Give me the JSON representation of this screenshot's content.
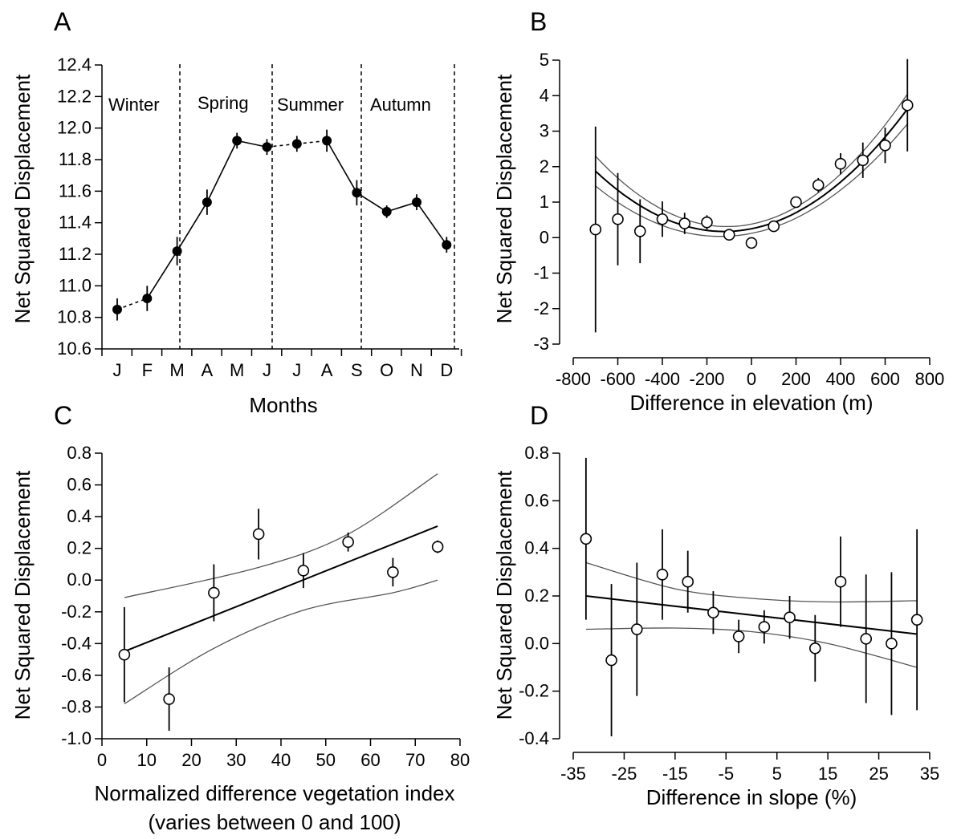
{
  "chart_data": [
    {
      "type": "line",
      "panel": "A",
      "xlabel": "Months",
      "ylabel": "Net Squared Displacement",
      "ylim": [
        10.6,
        12.4
      ],
      "yticks": [
        "10.6",
        "10.8",
        "11.0",
        "11.2",
        "11.4",
        "11.6",
        "11.8",
        "12.0",
        "12.2",
        "12.4"
      ],
      "categories": [
        "J",
        "F",
        "M",
        "A",
        "M",
        "J",
        "J",
        "A",
        "S",
        "O",
        "N",
        "D"
      ],
      "values": [
        10.85,
        10.92,
        11.22,
        11.53,
        11.92,
        11.88,
        11.9,
        11.92,
        11.59,
        11.47,
        11.53,
        11.26
      ],
      "errors": [
        0.07,
        0.08,
        0.09,
        0.08,
        0.05,
        0.05,
        0.05,
        0.07,
        0.08,
        0.04,
        0.05,
        0.05
      ],
      "seasons": [
        "Winter",
        "Spring",
        "Summer",
        "Autumn"
      ],
      "marker": "filled-circle"
    },
    {
      "type": "scatter",
      "panel": "B",
      "xlabel": "Difference in elevation (m)",
      "ylabel": "Net Squared Displacement",
      "xlim": [
        -800,
        800
      ],
      "ylim": [
        -3,
        5
      ],
      "xticks": [
        "-800",
        "-600",
        "-400",
        "-200",
        "0",
        "200",
        "400",
        "600",
        "800"
      ],
      "yticks": [
        "-3",
        "-2",
        "-1",
        "0",
        "1",
        "2",
        "3",
        "4",
        "5"
      ],
      "x": [
        -700,
        -600,
        -500,
        -400,
        -300,
        -200,
        -100,
        0,
        100,
        200,
        300,
        400,
        500,
        600,
        700
      ],
      "y": [
        0.23,
        0.52,
        0.18,
        0.52,
        0.4,
        0.43,
        0.08,
        -0.15,
        0.32,
        1.0,
        1.48,
        2.08,
        2.18,
        2.6,
        3.73
      ],
      "errors": [
        2.9,
        1.3,
        0.9,
        0.5,
        0.3,
        0.2,
        0.15,
        0.1,
        0.15,
        0.15,
        0.2,
        0.3,
        0.5,
        0.5,
        1.3
      ],
      "fit": {
        "type": "quadratic",
        "coefficients": [
          0.25,
          0.00125,
          5.1e-06
        ],
        "ci_half_width": [
          0.42,
          0.13,
          0.42
        ]
      },
      "marker": "open-circle"
    },
    {
      "type": "scatter",
      "panel": "C",
      "xlabel": "Normalized difference vegetation index",
      "xlabel2": "(varies between 0 and 100)",
      "ylabel": "Net Squared Displacement",
      "xlim": [
        0,
        80
      ],
      "ylim": [
        -1.0,
        0.8
      ],
      "xticks": [
        "0",
        "10",
        "20",
        "30",
        "40",
        "50",
        "60",
        "70",
        "80"
      ],
      "yticks": [
        "-1.0",
        "-0.8",
        "-0.6",
        "-0.4",
        "-0.2",
        "0.0",
        "0.2",
        "0.4",
        "0.6",
        "0.8"
      ],
      "x": [
        5,
        15,
        25,
        35,
        45,
        55,
        65,
        75
      ],
      "y": [
        -0.47,
        -0.75,
        -0.08,
        0.29,
        0.06,
        0.24,
        0.05,
        0.21
      ],
      "errors": [
        0.3,
        0.2,
        0.18,
        0.16,
        0.11,
        0.06,
        0.09,
        0.04
      ],
      "fit": {
        "type": "linear",
        "x0": 5,
        "y0": -0.45,
        "x1": 75,
        "y1": 0.34
      },
      "ci_upper": [
        [
          5,
          -0.11
        ],
        [
          35,
          0.08
        ],
        [
          55,
          0.29
        ],
        [
          75,
          0.67
        ]
      ],
      "ci_lower": [
        [
          5,
          -0.78
        ],
        [
          25,
          -0.43
        ],
        [
          45,
          -0.19
        ],
        [
          65,
          -0.08
        ],
        [
          75,
          0.0
        ]
      ],
      "marker": "open-circle"
    },
    {
      "type": "scatter",
      "panel": "D",
      "xlabel": "Difference in slope (%)",
      "ylabel": "Net Squared Displacement",
      "xlim": [
        -37,
        35
      ],
      "ylim": [
        -0.4,
        0.8
      ],
      "xticks": [
        "-35",
        "-25",
        "-15",
        "-5",
        "5",
        "15",
        "25",
        "35"
      ],
      "yticks": [
        "-0.4",
        "-0.2",
        "0.0",
        "0.2",
        "0.4",
        "0.6",
        "0.8"
      ],
      "x": [
        -32.5,
        -27.5,
        -22.5,
        -17.5,
        -12.5,
        -7.5,
        -2.5,
        2.5,
        7.5,
        12.5,
        17.5,
        22.5,
        27.5,
        32.5
      ],
      "y": [
        0.44,
        -0.07,
        0.06,
        0.29,
        0.26,
        0.13,
        0.03,
        0.07,
        0.11,
        -0.02,
        0.26,
        0.02,
        0.0,
        0.1
      ],
      "errors": [
        0.34,
        0.32,
        0.28,
        0.19,
        0.13,
        0.09,
        0.07,
        0.07,
        0.09,
        0.14,
        0.19,
        0.27,
        0.3,
        0.38
      ],
      "fit": {
        "type": "linear",
        "x0": -32.5,
        "y0": 0.2,
        "x1": 32.5,
        "y1": 0.04
      },
      "ci_upper": [
        [
          -32.5,
          0.34
        ],
        [
          -15,
          0.23
        ],
        [
          0,
          0.19
        ],
        [
          15,
          0.175
        ],
        [
          32.5,
          0.18
        ]
      ],
      "ci_lower": [
        [
          -32.5,
          0.06
        ],
        [
          -15,
          0.065
        ],
        [
          0,
          0.05
        ],
        [
          15,
          0.0
        ],
        [
          32.5,
          -0.1
        ]
      ],
      "marker": "open-circle"
    }
  ]
}
